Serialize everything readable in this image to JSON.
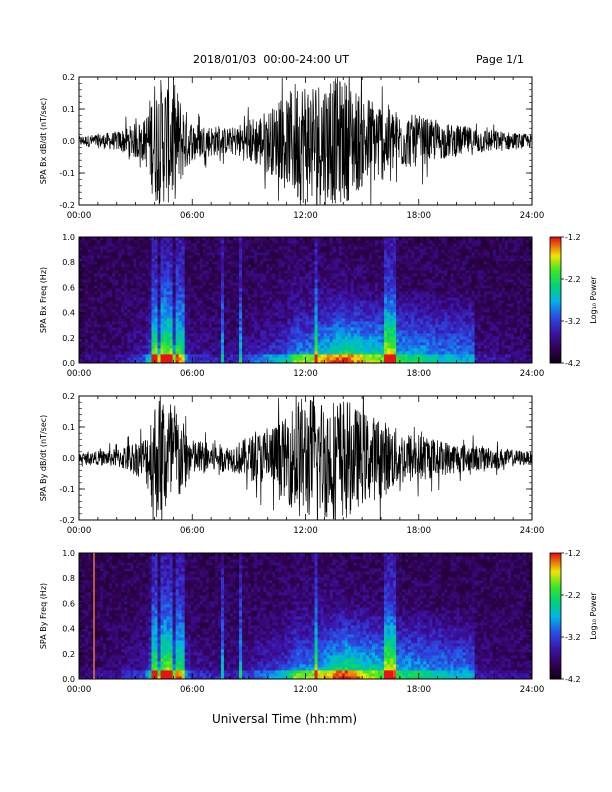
{
  "header": {
    "title": "2018/01/03  00:00-24:00 UT",
    "page": "Page 1/1"
  },
  "footer": {
    "xlabel": "Universal Time (hh:mm)"
  },
  "colorbar": {
    "ticks": [
      "-1.2",
      "-2.2",
      "-3.2",
      "-4.2"
    ],
    "label": "Log₁₀ Power"
  },
  "chart_data": [
    {
      "type": "line",
      "ylabel": "SPA Bx dB/dt (nT/sec)",
      "ylim": [
        -0.2,
        0.2
      ],
      "yticks": [
        "0.2",
        "0.1",
        "0.0",
        "-0.1",
        "-0.2"
      ],
      "xticks": [
        "00:00",
        "06:00",
        "12:00",
        "18:00",
        "24:00"
      ],
      "xlim_hours": [
        0,
        24
      ],
      "envelope": {
        "hours": [
          0,
          2,
          3.5,
          4.0,
          4.5,
          5.0,
          5.5,
          6.0,
          7.0,
          8.0,
          9.0,
          10.0,
          11.0,
          11.5,
          12.0,
          13.0,
          14.0,
          15.0,
          16.0,
          17.0,
          18.0,
          19.0,
          20.0,
          22.0,
          24.0
        ],
        "amplitude": [
          0.015,
          0.03,
          0.07,
          0.2,
          0.2,
          0.2,
          0.12,
          0.06,
          0.05,
          0.04,
          0.07,
          0.1,
          0.13,
          0.2,
          0.2,
          0.2,
          0.2,
          0.15,
          0.13,
          0.09,
          0.08,
          0.06,
          0.05,
          0.035,
          0.02
        ]
      }
    },
    {
      "type": "heatmap",
      "ylabel": "SPA Bx Freq (Hz)",
      "ylim": [
        0.0,
        1.0
      ],
      "yticks": [
        "1.0",
        "0.8",
        "0.6",
        "0.4",
        "0.2",
        "0.0"
      ],
      "xticks": [
        "00:00",
        "06:00",
        "12:00",
        "18:00",
        "24:00"
      ],
      "colorbar_range": [
        -4.2,
        -1.2
      ],
      "colorbar_label": "Log10 Power"
    },
    {
      "type": "line",
      "ylabel": "SPA By dB/dt (nT/sec)",
      "ylim": [
        -0.2,
        0.2
      ],
      "yticks": [
        "0.2",
        "0.1",
        "0.0",
        "-0.1",
        "-0.2"
      ],
      "xticks": [
        "00:00",
        "06:00",
        "12:00",
        "18:00",
        "24:00"
      ],
      "xlim_hours": [
        0,
        24
      ],
      "envelope": {
        "hours": [
          0,
          2,
          3.5,
          4.0,
          4.5,
          5.0,
          5.5,
          6.0,
          7.0,
          8.0,
          9.0,
          10.0,
          11.0,
          11.5,
          12.0,
          13.0,
          14.0,
          15.0,
          16.0,
          17.0,
          18.0,
          19.0,
          20.0,
          22.0,
          24.0
        ],
        "amplitude": [
          0.015,
          0.03,
          0.07,
          0.2,
          0.2,
          0.2,
          0.12,
          0.06,
          0.05,
          0.04,
          0.07,
          0.1,
          0.13,
          0.2,
          0.2,
          0.2,
          0.2,
          0.15,
          0.13,
          0.09,
          0.08,
          0.06,
          0.05,
          0.035,
          0.02
        ]
      }
    },
    {
      "type": "heatmap",
      "ylabel": "SPA By Freq (Hz)",
      "ylim": [
        0.0,
        1.0
      ],
      "yticks": [
        "1.0",
        "0.8",
        "0.6",
        "0.4",
        "0.2",
        "0.0"
      ],
      "xticks": [
        "00:00",
        "06:00",
        "12:00",
        "18:00",
        "24:00"
      ],
      "colorbar_range": [
        -4.2,
        -1.2
      ],
      "colorbar_label": "Log10 Power"
    }
  ]
}
